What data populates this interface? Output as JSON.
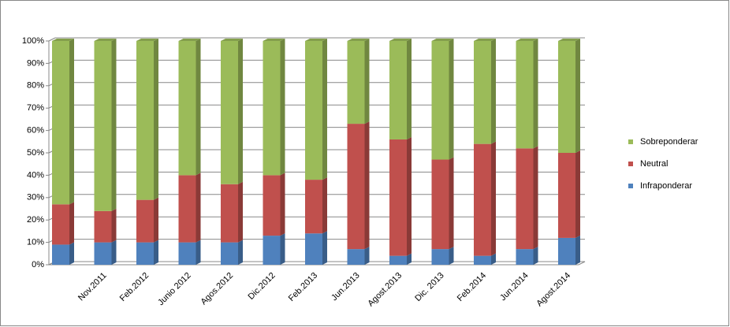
{
  "chart_data": {
    "type": "stacked_bar_100",
    "categories": [
      null,
      "Nov.2011",
      "Feb.2012",
      "Junio 2012",
      "Agos.2012",
      "Dic.2012",
      "Feb.2013",
      "Jun.2013",
      "Agost.2013",
      "Dic. 2013",
      "Feb.2014",
      "Jun.2014",
      "Agost.2014"
    ],
    "series": [
      {
        "name": "Infraponderar",
        "color": "#4f81bd",
        "values": [
          9,
          10,
          10,
          10,
          10,
          13,
          14,
          7,
          4,
          7,
          4,
          7,
          12
        ]
      },
      {
        "name": "Neutral",
        "color": "#c0504d",
        "values": [
          18,
          14,
          19,
          30,
          26,
          27,
          24,
          56,
          52,
          40,
          50,
          45,
          38
        ]
      },
      {
        "name": "Sobreponderar",
        "color": "#9bbb59",
        "values": [
          73,
          76,
          71,
          60,
          64,
          60,
          62,
          37,
          44,
          53,
          46,
          48,
          50
        ]
      }
    ],
    "ylim": [
      0,
      100
    ],
    "yticks": [
      {
        "value": 0,
        "label": "0%"
      },
      {
        "value": 10,
        "label": "10%"
      },
      {
        "value": 20,
        "label": "20%"
      },
      {
        "value": 30,
        "label": "30%"
      },
      {
        "value": 40,
        "label": "40%"
      },
      {
        "value": 50,
        "label": "50%"
      },
      {
        "value": 60,
        "label": "60%"
      },
      {
        "value": 70,
        "label": "70%"
      },
      {
        "value": 80,
        "label": "80%"
      },
      {
        "value": 90,
        "label": "90%"
      },
      {
        "value": 100,
        "label": "100%"
      }
    ],
    "grid": true,
    "legend": "right"
  }
}
